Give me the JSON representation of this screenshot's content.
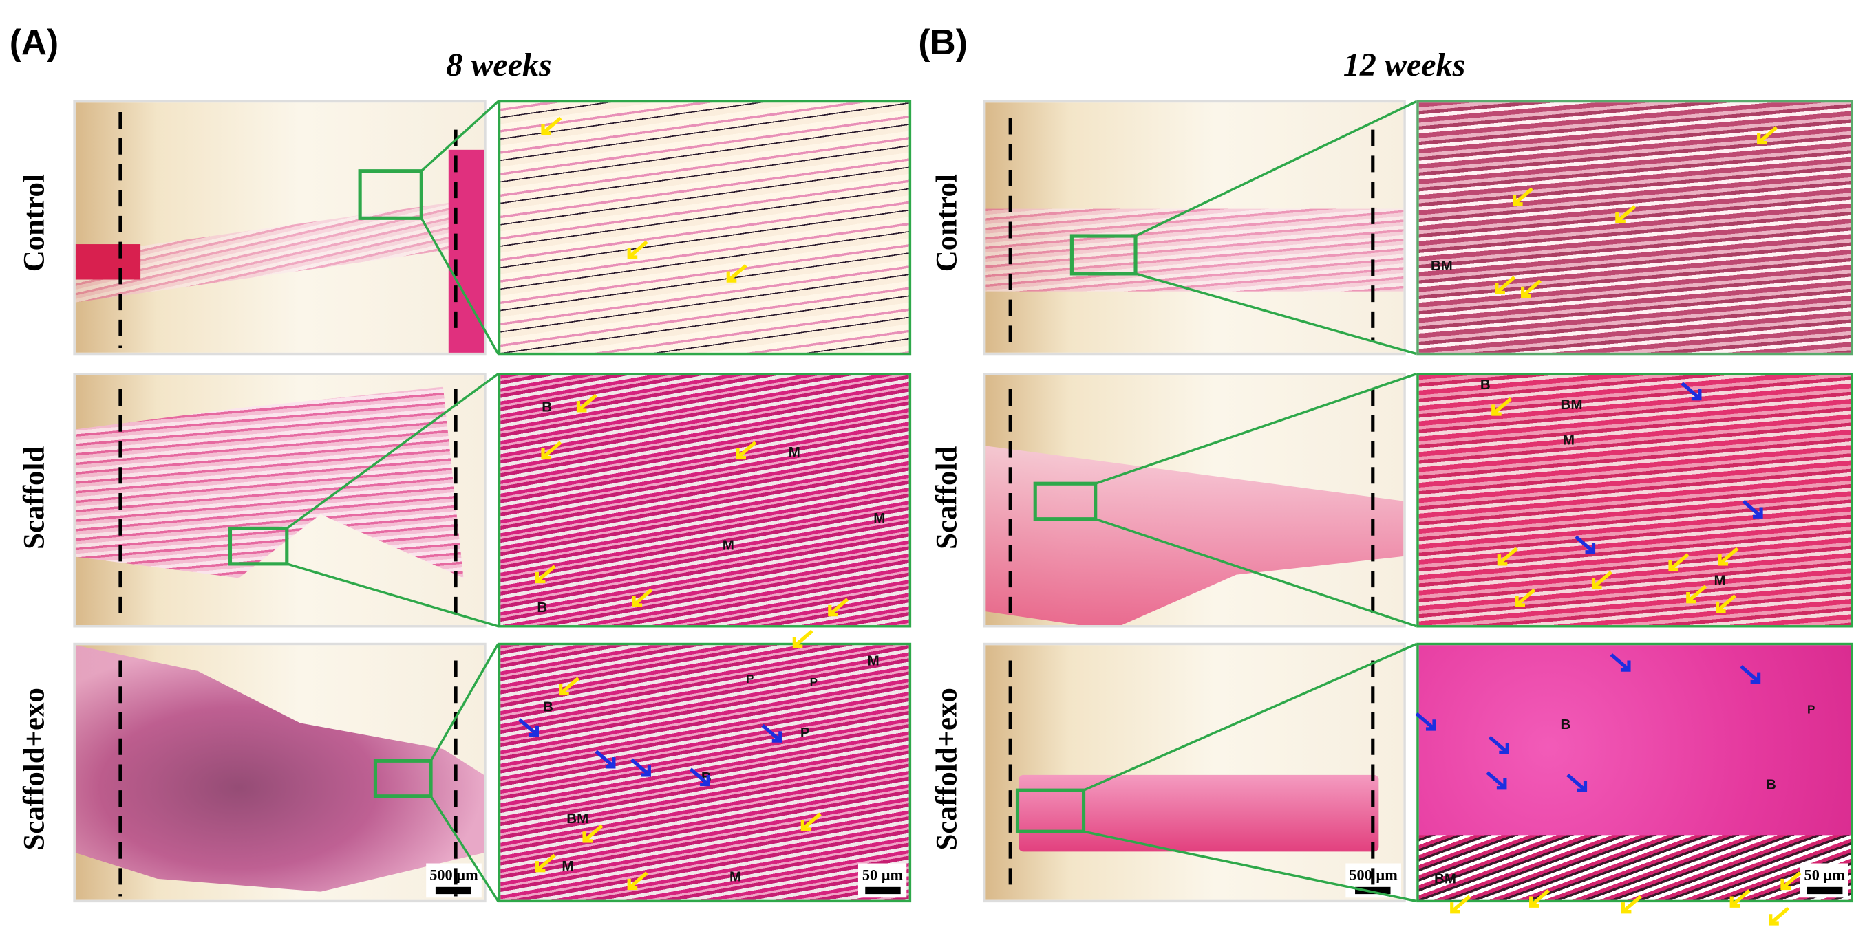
{
  "panels": {
    "a": "(A)",
    "b": "(B)"
  },
  "titles": {
    "a": "8 weeks",
    "b": "12 weeks"
  },
  "rows": [
    "Control",
    "Scaffold",
    "Scaffold+exo"
  ],
  "scale_bars": {
    "overview": "500 µm",
    "zoom": "50 µm"
  },
  "annotations": {
    "a_scaffold": [
      "B",
      "M",
      "M",
      "M",
      "B"
    ],
    "a_exo": [
      "M",
      "P",
      "P",
      "P",
      "B",
      "B",
      "BM",
      "M",
      "M"
    ],
    "b_control": [
      "BM"
    ],
    "b_scaffold": [
      "B",
      "BM",
      "M",
      "M"
    ],
    "b_exo": [
      "B",
      "P",
      "B",
      "BM"
    ]
  },
  "colors": {
    "inset_frame": "#2ea84a",
    "yellow_arrow": "#ffe600",
    "blue_arrow": "#1c2fe0",
    "dashed_line": "#000000"
  }
}
